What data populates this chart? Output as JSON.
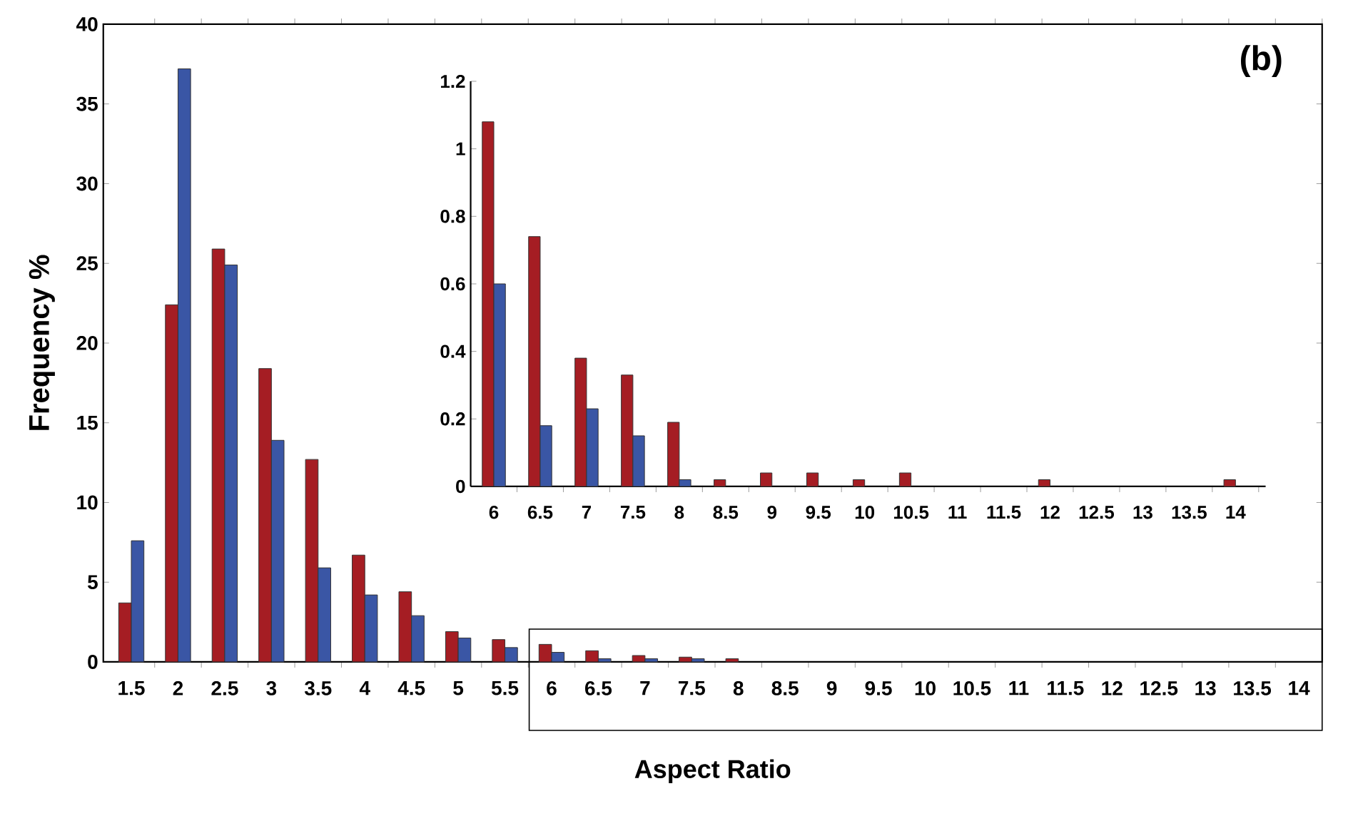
{
  "chart_data": [
    {
      "type": "bar",
      "xlabel": "Aspect Ratio",
      "ylabel": "Frequency %",
      "annotations": [
        "(b)"
      ],
      "categories": [
        "1.5",
        "2",
        "2.5",
        "3",
        "3.5",
        "4",
        "4.5",
        "5",
        "5.5",
        "6",
        "6.5",
        "7",
        "7.5",
        "8",
        "8.5",
        "9",
        "9.5",
        "10",
        "10.5",
        "11",
        "11.5",
        "12",
        "12.5",
        "13",
        "13.5",
        "14"
      ],
      "series": [
        {
          "color": "#a51d23",
          "values": [
            3.7,
            22.4,
            25.9,
            18.4,
            12.7,
            6.7,
            4.4,
            1.9,
            1.4,
            1.1,
            0.7,
            0.4,
            0.3,
            0.2,
            null,
            null,
            null,
            null,
            null,
            null,
            null,
            null,
            null,
            null,
            null,
            null
          ]
        },
        {
          "color": "#3a56a5",
          "values": [
            7.6,
            37.2,
            24.9,
            13.9,
            5.9,
            4.2,
            2.9,
            1.5,
            0.9,
            0.6,
            0.2,
            0.2,
            0.2,
            null,
            null,
            null,
            null,
            null,
            null,
            null,
            null,
            null,
            null,
            null,
            null,
            null
          ]
        }
      ],
      "ylim": [
        0,
        40
      ],
      "yticks": [
        0,
        5,
        10,
        15,
        20,
        25,
        30,
        35,
        40
      ]
    },
    {
      "type": "bar",
      "categories": [
        "6",
        "6.5",
        "7",
        "7.5",
        "8",
        "8.5",
        "9",
        "9.5",
        "10",
        "10.5",
        "11",
        "11.5",
        "12",
        "12.5",
        "13",
        "13.5",
        "14"
      ],
      "series": [
        {
          "color": "#a51d23",
          "values": [
            1.08,
            0.74,
            0.38,
            0.33,
            0.19,
            0.02,
            0.04,
            0.04,
            0.02,
            0.04,
            null,
            null,
            0.02,
            null,
            null,
            null,
            0.02
          ]
        },
        {
          "color": "#3a56a5",
          "values": [
            0.6,
            0.18,
            0.23,
            0.15,
            0.02,
            null,
            null,
            null,
            null,
            null,
            null,
            null,
            null,
            null,
            null,
            null,
            null
          ]
        }
      ],
      "ylim": [
        0,
        1.2
      ],
      "yticks": [
        0,
        0.2,
        0.4,
        0.6,
        0.8,
        1,
        1.2
      ]
    }
  ]
}
